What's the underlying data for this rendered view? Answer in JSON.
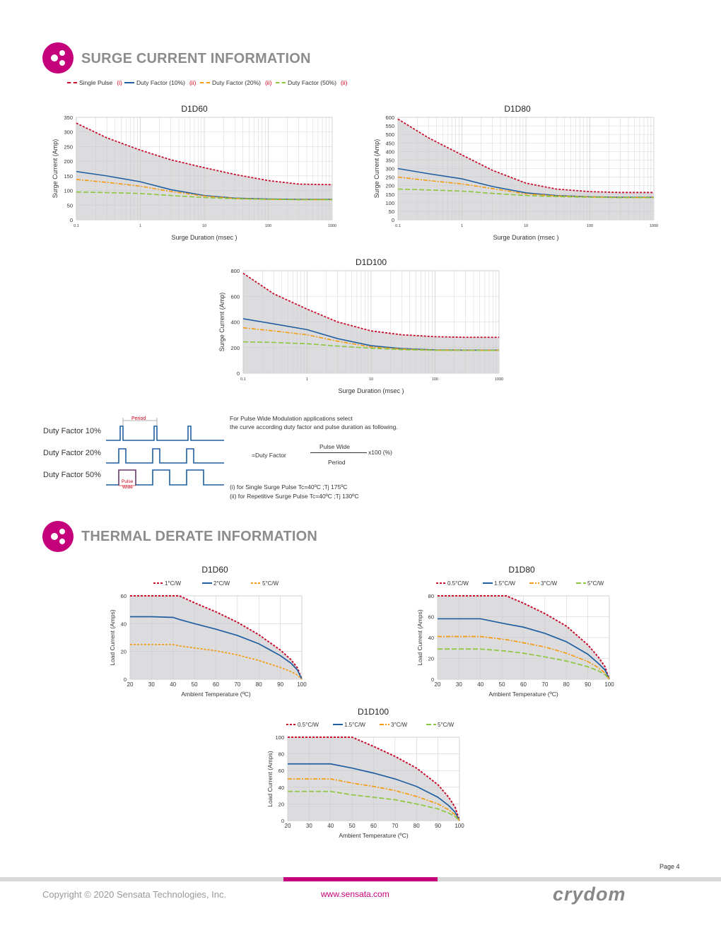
{
  "sections": {
    "surge_title": "SURGE CURRENT INFORMATION",
    "thermal_title": "THERMAL DERATE INFORMATION"
  },
  "colors": {
    "accent": "#c4007a",
    "single": "#c8102e",
    "df10": "#1f5fa0",
    "df20": "#f39c12",
    "df50": "#8dc63f",
    "fill": "#dcdcdf"
  },
  "surge_legend": [
    {
      "label": "Single Pulse",
      "tag": "(i)"
    },
    {
      "label": "Duty Factor (10%)",
      "tag": "(ii)"
    },
    {
      "label": "Duty Factor (20%)",
      "tag": "(ii)"
    },
    {
      "label": "Duty Factor (50%)",
      "tag": "(ii)"
    }
  ],
  "surge_axes": {
    "xlabel": "Surge Duration    (msec )",
    "ylabel": "Surge Current    (Amp)",
    "xticks": [
      "0.1",
      "1",
      "10",
      "100",
      "1000"
    ]
  },
  "chart_data": [
    {
      "type": "line",
      "title": "D1D60",
      "xscale": "log",
      "xlim": [
        0.1,
        1000
      ],
      "ylim": [
        0,
        350
      ],
      "yticks": [
        "0",
        "50",
        "100",
        "150",
        "200",
        "250",
        "300",
        "350"
      ],
      "x": [
        0.1,
        0.3,
        1,
        3,
        10,
        30,
        100,
        300,
        1000
      ],
      "series": [
        {
          "name": "Single Pulse",
          "values": [
            330,
            280,
            238,
            205,
            178,
            155,
            134,
            122,
            120
          ]
        },
        {
          "name": "Duty Factor (10%)",
          "values": [
            165,
            150,
            130,
            103,
            83,
            74,
            71,
            70,
            70
          ]
        },
        {
          "name": "Duty Factor (20%)",
          "values": [
            138,
            128,
            115,
            97,
            81,
            73,
            70,
            69,
            69
          ]
        },
        {
          "name": "Duty Factor (50%)",
          "values": [
            95,
            93,
            90,
            83,
            76,
            72,
            70,
            69,
            69
          ]
        }
      ]
    },
    {
      "type": "line",
      "title": "D1D80",
      "xscale": "log",
      "xlim": [
        0.1,
        1000
      ],
      "ylim": [
        0,
        600
      ],
      "yticks": [
        "0",
        "50",
        "100",
        "150",
        "200",
        "250",
        "300",
        "350",
        "400",
        "450",
        "500",
        "550",
        "600"
      ],
      "x": [
        0.1,
        0.3,
        1,
        3,
        10,
        30,
        100,
        300,
        1000
      ],
      "series": [
        {
          "name": "Single Pulse",
          "values": [
            590,
            480,
            380,
            290,
            215,
            180,
            165,
            160,
            160
          ]
        },
        {
          "name": "Duty Factor (10%)",
          "values": [
            300,
            270,
            240,
            195,
            158,
            142,
            135,
            132,
            132
          ]
        },
        {
          "name": "Duty Factor (20%)",
          "values": [
            250,
            230,
            210,
            183,
            152,
            140,
            134,
            131,
            131
          ]
        },
        {
          "name": "Duty Factor (50%)",
          "values": [
            180,
            175,
            168,
            155,
            142,
            136,
            132,
            130,
            130
          ]
        }
      ]
    },
    {
      "type": "line",
      "title": "D1D100",
      "xscale": "log",
      "xlim": [
        0.1,
        1000
      ],
      "ylim": [
        0,
        800
      ],
      "yticks": [
        "0",
        "200",
        "400",
        "600",
        "800"
      ],
      "x": [
        0.1,
        0.3,
        1,
        3,
        10,
        30,
        100,
        300,
        1000
      ],
      "series": [
        {
          "name": "Single Pulse",
          "values": [
            780,
            620,
            500,
            400,
            330,
            300,
            285,
            280,
            280
          ]
        },
        {
          "name": "Duty Factor (10%)",
          "values": [
            425,
            385,
            340,
            270,
            215,
            192,
            182,
            180,
            180
          ]
        },
        {
          "name": "Duty Factor (20%)",
          "values": [
            355,
            330,
            300,
            250,
            205,
            188,
            180,
            179,
            179
          ]
        },
        {
          "name": "Duty Factor (50%)",
          "values": [
            245,
            240,
            230,
            212,
            195,
            184,
            179,
            178,
            178
          ]
        }
      ]
    },
    {
      "type": "line",
      "title": "D1D60",
      "xlim": [
        20,
        100
      ],
      "ylim": [
        0,
        60
      ],
      "yticks": [
        "0",
        "20",
        "40",
        "60"
      ],
      "xticks": [
        "20",
        "30",
        "40",
        "50",
        "60",
        "70",
        "80",
        "90",
        "100"
      ],
      "xlabel": "Ambient Temperature (ºC)",
      "ylabel": "Load Current (Amps)",
      "x": [
        20,
        30,
        40,
        43,
        50,
        60,
        70,
        80,
        90,
        95,
        98,
        100
      ],
      "series": [
        {
          "name": "1°C/W",
          "values": [
            60,
            60,
            60,
            60,
            55,
            48.5,
            41,
            32,
            21,
            14,
            8,
            0
          ]
        },
        {
          "name": "2°C/W",
          "values": [
            45,
            45,
            44.5,
            43,
            40,
            36,
            31.5,
            25.5,
            17,
            11.5,
            6.5,
            0
          ]
        },
        {
          "name": "5°C/W",
          "values": [
            25,
            25,
            25,
            24,
            22.5,
            20.5,
            17.5,
            13.5,
            8.5,
            5.5,
            3,
            0
          ]
        }
      ]
    },
    {
      "type": "line",
      "title": "D1D80",
      "xlim": [
        20,
        100
      ],
      "ylim": [
        0,
        80
      ],
      "yticks": [
        "0",
        "20",
        "40",
        "60",
        "80"
      ],
      "xticks": [
        "20",
        "30",
        "40",
        "50",
        "60",
        "70",
        "80",
        "90",
        "100"
      ],
      "xlabel": "Ambient Temperature (ºC)",
      "ylabel": "Load Current (Amps)",
      "x": [
        20,
        30,
        40,
        52,
        60,
        70,
        80,
        90,
        95,
        98,
        100
      ],
      "series": [
        {
          "name": "0.5°C/W",
          "values": [
            80,
            80,
            80,
            80,
            73,
            63,
            51,
            33,
            21,
            12,
            0
          ]
        },
        {
          "name": "1.5°C/W",
          "values": [
            58,
            58,
            58,
            53,
            50,
            44,
            36,
            24,
            15,
            9,
            0
          ]
        },
        {
          "name": "3°C/W",
          "values": [
            41,
            41,
            41,
            38,
            35,
            31,
            25,
            17,
            11,
            6,
            0
          ]
        },
        {
          "name": "5°C/W",
          "values": [
            29,
            29,
            29,
            27,
            25,
            21.5,
            17.5,
            12,
            8,
            4.5,
            0
          ]
        }
      ]
    },
    {
      "type": "line",
      "title": "D1D100",
      "xlim": [
        20,
        100
      ],
      "ylim": [
        0,
        100
      ],
      "yticks": [
        "0",
        "20",
        "40",
        "60",
        "80",
        "100"
      ],
      "xticks": [
        "20",
        "30",
        "40",
        "50",
        "60",
        "70",
        "80",
        "90",
        "100"
      ],
      "xlabel": "Ambient Temperature (ºC)",
      "ylabel": "Load Current (Amps)",
      "x": [
        20,
        30,
        40,
        50,
        60,
        70,
        80,
        90,
        95,
        98,
        100
      ],
      "series": [
        {
          "name": "0.5°C/W",
          "values": [
            100,
            100,
            100,
            100,
            89,
            77,
            63,
            43,
            28,
            16,
            0
          ]
        },
        {
          "name": "1.5°C/W",
          "values": [
            68,
            68,
            68,
            63,
            57,
            50,
            41,
            28,
            18,
            10,
            0
          ]
        },
        {
          "name": "3°C/W",
          "values": [
            50,
            50,
            50,
            45,
            41,
            36,
            29,
            20,
            13,
            7,
            0
          ]
        },
        {
          "name": "5°C/W",
          "values": [
            35,
            35,
            35,
            31,
            28,
            25,
            20,
            14,
            9,
            5,
            0
          ]
        }
      ]
    }
  ],
  "duty_diagram": {
    "labels": [
      "Duty Factor  10%",
      "Duty Factor  20%",
      "Duty Factor  50%"
    ],
    "period_label": "Period",
    "pulse_label_1": "Pulse",
    "pulse_label_2": "Wide"
  },
  "pwm": {
    "line1": "For Pulse Wide Modulation applications select",
    "line2": "the curve according duty factor and pulse duration as following.",
    "numerator": "Pulse Wide",
    "denominator": "Period",
    "lhs": "=Duty Factor",
    "rhs": "x100 (%)",
    "note1": " (i) for Single Surge  Pulse  Tc=40ºC ;Tj 175ºC",
    "note2": "(ii) for Repetitive  Surge Pulse  Tc=40ºC ;Tj 130ºC"
  },
  "footer": {
    "page": "Page 4",
    "copyright": "Copyright © 2020 Sensata Technologies, Inc.",
    "website": "www.sensata.com",
    "logo": "crydom"
  }
}
